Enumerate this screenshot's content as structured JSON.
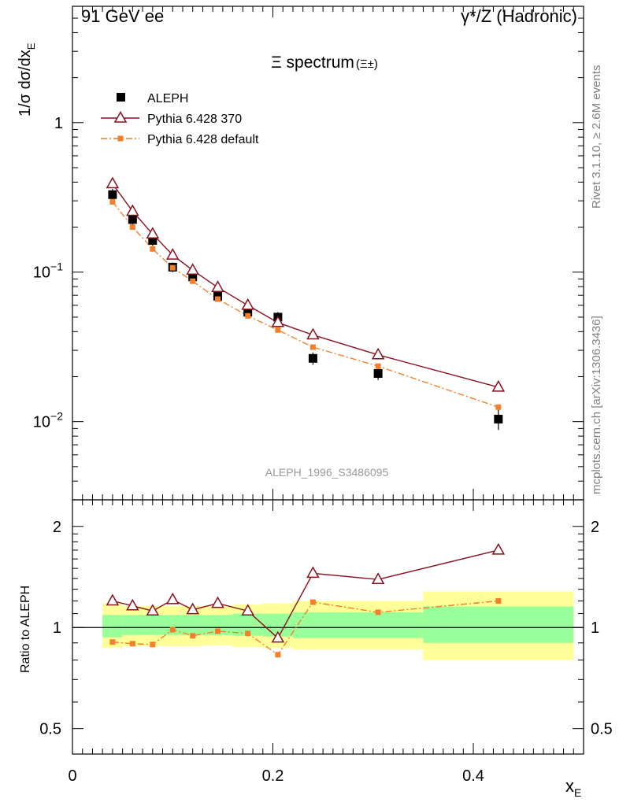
{
  "header": {
    "left": "91 GeV ee",
    "right": "γ*/Z (Hadronic)"
  },
  "side_labels": {
    "rivet": "Rivet 3.1.10, ≥ 2.6M events",
    "mcplots": "mcplots.cern.ch [arXiv:1306.3436]"
  },
  "colors": {
    "data": "#000000",
    "pythia370": "#8b0f1e",
    "pythia_default": "#f47f2b",
    "band_inner": "#99ff99",
    "band_outer": "#ffff99"
  },
  "chart_data": [
    {
      "type": "scatter",
      "title": "Ξ spectrum",
      "title_suffix": "(Ξ±)",
      "ylabel": "1/σ dσ/dx",
      "ylabel_sub": "E",
      "xlabel": "",
      "scale_y": "log",
      "xlim": [
        0,
        0.51
      ],
      "ylim": [
        0.003,
        6
      ],
      "y_ticks": [
        {
          "value": 1,
          "label": "1"
        },
        {
          "value": 0.1,
          "label": "10",
          "exp": "−1"
        },
        {
          "value": 0.01,
          "label": "10",
          "exp": "−2"
        }
      ],
      "analysis_label": "ALEPH_1996_S3486095",
      "legend_position": "top-left",
      "series": [
        {
          "name": "ALEPH",
          "marker": "square",
          "x": [
            0.04,
            0.06,
            0.08,
            0.1,
            0.12,
            0.145,
            0.175,
            0.205,
            0.24,
            0.305,
            0.425
          ],
          "y": [
            0.33,
            0.225,
            0.163,
            0.108,
            0.093,
            0.069,
            0.054,
            0.05,
            0.0265,
            0.021,
            0.0104
          ],
          "y_lo": [
            0.3,
            0.205,
            0.15,
            0.1,
            0.085,
            0.064,
            0.05,
            0.046,
            0.024,
            0.019,
            0.0088
          ],
          "y_hi": [
            0.36,
            0.245,
            0.176,
            0.116,
            0.101,
            0.074,
            0.058,
            0.054,
            0.029,
            0.023,
            0.012
          ],
          "x_lo": [
            0.03,
            0.05,
            0.07,
            0.09,
            0.11,
            0.13,
            0.16,
            0.19,
            0.22,
            0.26,
            0.35
          ],
          "x_hi": [
            0.05,
            0.07,
            0.09,
            0.11,
            0.13,
            0.16,
            0.19,
            0.22,
            0.26,
            0.35,
            0.5
          ]
        },
        {
          "name": "Pythia 6.428 370",
          "marker": "open-triangle",
          "line": "solid",
          "x": [
            0.04,
            0.06,
            0.08,
            0.1,
            0.12,
            0.145,
            0.175,
            0.205,
            0.24,
            0.305,
            0.425
          ],
          "y": [
            0.39,
            0.255,
            0.18,
            0.13,
            0.103,
            0.079,
            0.06,
            0.046,
            0.038,
            0.028,
            0.017
          ]
        },
        {
          "name": "Pythia 6.428 default",
          "marker": "square-small",
          "line": "dash-dot",
          "x": [
            0.04,
            0.06,
            0.08,
            0.1,
            0.12,
            0.145,
            0.175,
            0.205,
            0.24,
            0.305,
            0.425
          ],
          "y": [
            0.295,
            0.2,
            0.143,
            0.107,
            0.087,
            0.066,
            0.051,
            0.041,
            0.0315,
            0.0235,
            0.0125
          ]
        }
      ]
    },
    {
      "type": "line",
      "ylabel": "Ratio to ALEPH",
      "xlabel": "x",
      "xlabel_sub": "E",
      "scale_y": "log",
      "xlim": [
        0,
        0.51
      ],
      "ylim": [
        0.42,
        2.4
      ],
      "y_ticks": [
        {
          "value": 0.5,
          "label": "0.5"
        },
        {
          "value": 1,
          "label": "1"
        },
        {
          "value": 2,
          "label": "2"
        }
      ],
      "x_ticks": [
        {
          "value": 0,
          "label": "0"
        },
        {
          "value": 0.2,
          "label": "0.2"
        },
        {
          "value": 0.4,
          "label": "0.4"
        }
      ],
      "bands": [
        {
          "x0": 0.03,
          "x1": 0.05,
          "inner": [
            0.935,
            1.09
          ],
          "outer": [
            0.87,
            1.18
          ]
        },
        {
          "x0": 0.05,
          "x1": 0.13,
          "inner": [
            0.95,
            1.09
          ],
          "outer": [
            0.88,
            1.16
          ]
        },
        {
          "x0": 0.13,
          "x1": 0.16,
          "inner": [
            0.95,
            1.09
          ],
          "outer": [
            0.885,
            1.16
          ]
        },
        {
          "x0": 0.16,
          "x1": 0.19,
          "inner": [
            0.945,
            1.1
          ],
          "outer": [
            0.875,
            1.17
          ]
        },
        {
          "x0": 0.19,
          "x1": 0.22,
          "inner": [
            0.94,
            1.1
          ],
          "outer": [
            0.87,
            1.18
          ]
        },
        {
          "x0": 0.22,
          "x1": 0.35,
          "inner": [
            0.93,
            1.11
          ],
          "outer": [
            0.86,
            1.2
          ]
        },
        {
          "x0": 0.35,
          "x1": 0.5,
          "inner": [
            0.9,
            1.155
          ],
          "outer": [
            0.8,
            1.28
          ]
        }
      ],
      "series": [
        {
          "name": "Pythia 6.428 370",
          "marker": "open-triangle",
          "line": "solid",
          "x": [
            0.04,
            0.06,
            0.08,
            0.1,
            0.12,
            0.145,
            0.175,
            0.205,
            0.24,
            0.305,
            0.425
          ],
          "y": [
            1.2,
            1.16,
            1.12,
            1.21,
            1.13,
            1.18,
            1.12,
            0.93,
            1.45,
            1.39,
            1.7
          ]
        },
        {
          "name": "Pythia 6.428 default",
          "marker": "square-small",
          "line": "dash-dot",
          "x": [
            0.04,
            0.06,
            0.08,
            0.1,
            0.12,
            0.145,
            0.175,
            0.205,
            0.24,
            0.305,
            0.425
          ],
          "y": [
            0.905,
            0.895,
            0.89,
            0.985,
            0.945,
            0.975,
            0.96,
            0.83,
            1.19,
            1.11,
            1.2
          ]
        }
      ]
    }
  ]
}
